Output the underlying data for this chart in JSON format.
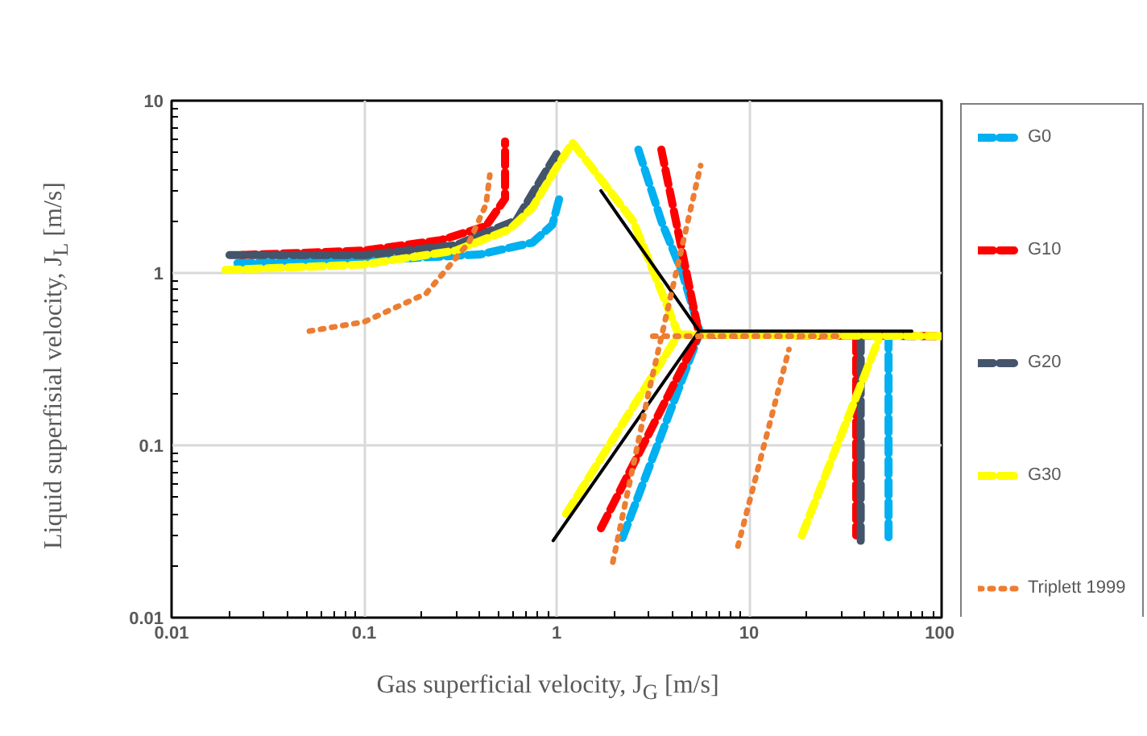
{
  "chart_data": {
    "type": "line",
    "xlabel": "Gas superficial velocity, J$_{G}$ [m/s]",
    "ylabel": "Liquid superfisial velocity, J$_{L}$ [m/s]",
    "log": "xy",
    "grid": true,
    "legend": "right",
    "line_style": "dashed",
    "xlim": [
      0.01,
      100
    ],
    "ylim": [
      0.01,
      10
    ],
    "xticks": [
      0.01,
      0.1,
      1,
      10,
      100
    ],
    "yticks": [
      0.01,
      0.1,
      1,
      10
    ],
    "series": [
      {
        "name": "G0",
        "color": "#00b0f0",
        "x": [
          0.022,
          0.1,
          0.4,
          0.75,
          0.95,
          1.05,
          null,
          2.66,
          3.5,
          4.5,
          5.6,
          null,
          2.2,
          5.5,
          80,
          null,
          53,
          53
        ],
        "values": [
          1.14,
          1.18,
          1.28,
          1.5,
          1.9,
          2.9,
          null,
          5.2,
          2,
          1,
          0.44,
          null,
          0.029,
          0.44,
          0.43,
          null,
          0.44,
          0.027
        ]
      },
      {
        "name": "G10",
        "color": "#ff0000",
        "x": [
          0.023,
          0.1,
          0.25,
          0.43,
          0.54,
          0.54,
          null,
          3.5,
          5.5,
          null,
          1.7,
          5.5,
          95,
          null,
          36,
          36
        ],
        "values": [
          1.27,
          1.35,
          1.55,
          1.87,
          2.7,
          5.8,
          null,
          5.2,
          0.44,
          null,
          0.033,
          0.44,
          0.43,
          null,
          0.42,
          0.03
        ]
      },
      {
        "name": "G20",
        "color": "#44546a",
        "x": [
          0.02,
          0.1,
          0.3,
          0.62,
          0.75,
          1.0,
          null,
          38,
          38
        ],
        "values": [
          1.27,
          1.27,
          1.45,
          2.03,
          2.9,
          4.9,
          null,
          0.42,
          0.027
        ]
      },
      {
        "name": "G30",
        "color": "#ffff00",
        "x": [
          0.019,
          0.1,
          0.3,
          0.57,
          0.75,
          1.0,
          1.21,
          2.5,
          4.3,
          null,
          1.12,
          4.3,
          100,
          null,
          18.8,
          47
        ],
        "values": [
          1.04,
          1.12,
          1.35,
          1.79,
          2.4,
          4.1,
          5.7,
          2,
          0.44,
          null,
          0.04,
          0.44,
          0.43,
          null,
          0.03,
          0.41
        ]
      },
      {
        "name": "Triplett 1999",
        "color": "#ed7d31",
        "line_style": "dotted",
        "x": [
          0.052,
          0.1,
          0.21,
          0.35,
          0.43,
          0.45,
          null,
          1.96,
          3,
          5.6,
          null,
          3.16,
          30,
          null,
          8.75,
          16.1
        ],
        "values": [
          0.46,
          0.52,
          0.76,
          1.5,
          2.5,
          3.7,
          null,
          0.021,
          0.2,
          4.2,
          null,
          0.43,
          0.43,
          null,
          0.026,
          0.36
        ]
      },
      {
        "color": "#000000",
        "line_style": "solid",
        "x": [
          0.96,
          5.5,
          null,
          1.7,
          5.5,
          70
        ],
        "values": [
          0.028,
          0.46,
          null,
          3.0,
          0.46,
          0.46
        ]
      }
    ]
  }
}
